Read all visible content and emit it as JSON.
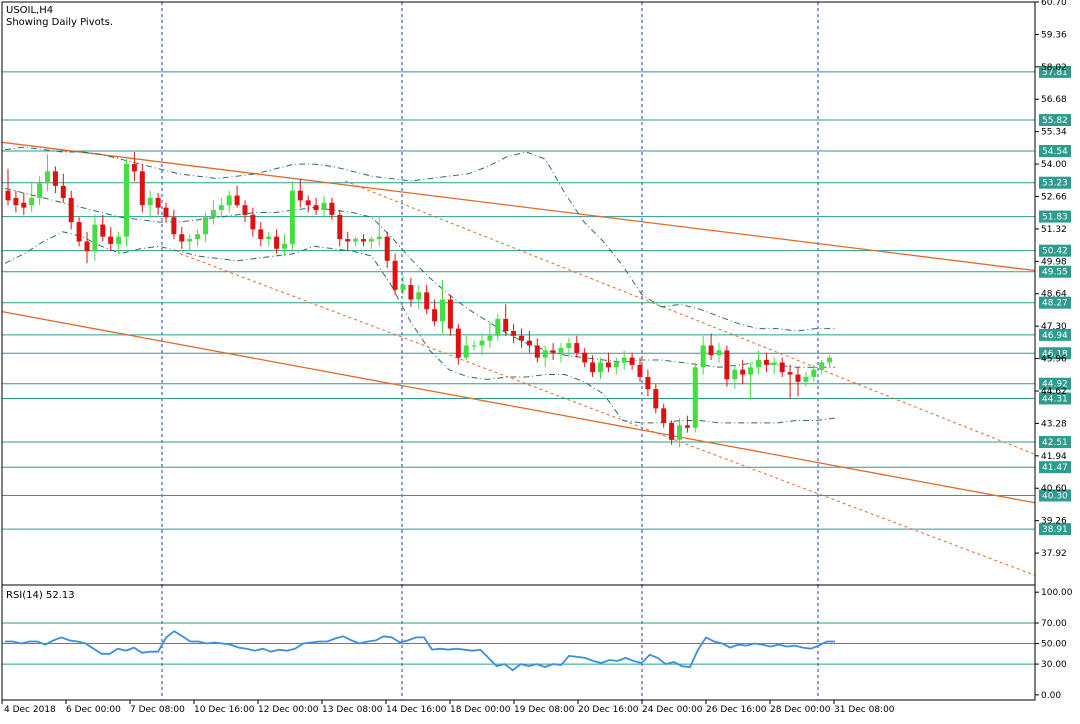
{
  "header": {
    "symbol_timeframe": "USOIL,H4",
    "subtitle": "Showing Daily Pivots."
  },
  "rsi_label": "RSI(14) 52.13",
  "colors": {
    "bull": "#44dd44",
    "bear": "#dd1111",
    "pivot_line": "#2a9d8f",
    "channel_line": "#e06a2c",
    "bollinger": "#2c6e63",
    "grid_vertical": "#1a3ccf",
    "rsi_line": "#3b8fe0",
    "rsi_levels": "#2a9d8f",
    "label_box": "#2e9c8c",
    "frame": "#000000"
  },
  "chart_data": [
    {
      "type": "candlestick",
      "title": "USOIL,H4",
      "subtitle": "Showing Daily Pivots.",
      "ylim": [
        36.6,
        60.7
      ],
      "y_ticks": [
        60.7,
        59.36,
        58.02,
        56.68,
        55.34,
        54.0,
        52.66,
        51.32,
        49.98,
        48.64,
        47.3,
        45.96,
        44.62,
        43.28,
        41.94,
        40.6,
        39.26,
        37.92
      ],
      "x_ticks": [
        "4 Dec 2018",
        "6 Dec 00:00",
        "7 Dec 08:00",
        "10 Dec 16:00",
        "12 Dec 00:00",
        "13 Dec 08:00",
        "14 Dec 16:00",
        "18 Dec 00:00",
        "19 Dec 08:00",
        "20 Dec 16:00",
        "24 Dec 00:00",
        "26 Dec 16:00",
        "28 Dec 00:00",
        "31 Dec 08:00"
      ],
      "day_separators_at_tick": [
        "7 Dec 08:00",
        "14 Dec 16:00",
        "24 Dec 00:00",
        "28 Dec 00:00"
      ],
      "pivot_levels": [
        57.81,
        55.82,
        54.54,
        53.23,
        51.83,
        50.42,
        49.55,
        48.27,
        46.94,
        46.18,
        44.92,
        44.31,
        42.51,
        41.47,
        40.3,
        38.91
      ],
      "candles": [
        {
          "o": 52.9,
          "h": 53.8,
          "l": 52.3,
          "c": 52.5
        },
        {
          "o": 52.6,
          "h": 52.9,
          "l": 52.0,
          "c": 52.3
        },
        {
          "o": 52.4,
          "h": 52.8,
          "l": 51.9,
          "c": 52.2
        },
        {
          "o": 52.3,
          "h": 53.2,
          "l": 52.0,
          "c": 52.6
        },
        {
          "o": 52.6,
          "h": 53.5,
          "l": 52.3,
          "c": 53.2
        },
        {
          "o": 53.2,
          "h": 54.4,
          "l": 52.9,
          "c": 53.7
        },
        {
          "o": 53.7,
          "h": 53.9,
          "l": 52.8,
          "c": 53.1
        },
        {
          "o": 53.1,
          "h": 53.6,
          "l": 52.4,
          "c": 52.6
        },
        {
          "o": 52.6,
          "h": 52.9,
          "l": 51.3,
          "c": 51.6
        },
        {
          "o": 51.6,
          "h": 51.8,
          "l": 50.6,
          "c": 50.8
        },
        {
          "o": 50.8,
          "h": 51.2,
          "l": 49.9,
          "c": 50.4
        },
        {
          "o": 50.4,
          "h": 51.9,
          "l": 50.0,
          "c": 51.5
        },
        {
          "o": 51.5,
          "h": 51.9,
          "l": 50.8,
          "c": 51.0
        },
        {
          "o": 51.0,
          "h": 51.4,
          "l": 50.4,
          "c": 50.7
        },
        {
          "o": 50.7,
          "h": 51.2,
          "l": 50.3,
          "c": 51.0
        },
        {
          "o": 51.0,
          "h": 54.2,
          "l": 50.6,
          "c": 54.0
        },
        {
          "o": 54.0,
          "h": 54.5,
          "l": 53.3,
          "c": 53.7
        },
        {
          "o": 53.7,
          "h": 54.0,
          "l": 52.0,
          "c": 52.3
        },
        {
          "o": 52.3,
          "h": 52.9,
          "l": 51.8,
          "c": 52.6
        },
        {
          "o": 52.6,
          "h": 52.8,
          "l": 51.9,
          "c": 52.2
        },
        {
          "o": 52.2,
          "h": 52.4,
          "l": 51.6,
          "c": 51.8
        },
        {
          "o": 51.8,
          "h": 52.1,
          "l": 50.9,
          "c": 51.1
        },
        {
          "o": 51.1,
          "h": 51.4,
          "l": 50.5,
          "c": 50.8
        },
        {
          "o": 50.8,
          "h": 51.1,
          "l": 50.4,
          "c": 50.9
        },
        {
          "o": 50.9,
          "h": 51.3,
          "l": 50.6,
          "c": 51.1
        },
        {
          "o": 51.1,
          "h": 52.0,
          "l": 50.8,
          "c": 51.8
        },
        {
          "o": 51.8,
          "h": 52.5,
          "l": 51.5,
          "c": 52.1
        },
        {
          "o": 52.1,
          "h": 52.6,
          "l": 51.8,
          "c": 52.3
        },
        {
          "o": 52.3,
          "h": 52.9,
          "l": 52.0,
          "c": 52.7
        },
        {
          "o": 52.7,
          "h": 53.1,
          "l": 52.2,
          "c": 52.3
        },
        {
          "o": 52.3,
          "h": 52.5,
          "l": 51.6,
          "c": 51.9
        },
        {
          "o": 51.9,
          "h": 52.2,
          "l": 51.0,
          "c": 51.3
        },
        {
          "o": 51.3,
          "h": 51.6,
          "l": 50.6,
          "c": 50.9
        },
        {
          "o": 50.9,
          "h": 51.2,
          "l": 50.6,
          "c": 51.0
        },
        {
          "o": 51.0,
          "h": 51.3,
          "l": 50.3,
          "c": 50.5
        },
        {
          "o": 50.5,
          "h": 51.1,
          "l": 50.2,
          "c": 50.7
        },
        {
          "o": 50.7,
          "h": 53.3,
          "l": 50.4,
          "c": 52.9
        },
        {
          "o": 52.9,
          "h": 53.4,
          "l": 52.2,
          "c": 52.5
        },
        {
          "o": 52.5,
          "h": 52.7,
          "l": 52.0,
          "c": 52.3
        },
        {
          "o": 52.3,
          "h": 52.6,
          "l": 51.9,
          "c": 52.1
        },
        {
          "o": 52.1,
          "h": 52.7,
          "l": 51.8,
          "c": 52.4
        },
        {
          "o": 52.4,
          "h": 52.6,
          "l": 51.7,
          "c": 51.9
        },
        {
          "o": 51.9,
          "h": 52.1,
          "l": 50.6,
          "c": 50.9
        },
        {
          "o": 50.9,
          "h": 51.2,
          "l": 50.4,
          "c": 50.8
        },
        {
          "o": 50.8,
          "h": 51.0,
          "l": 50.6,
          "c": 50.9
        },
        {
          "o": 50.9,
          "h": 51.1,
          "l": 50.6,
          "c": 50.8
        },
        {
          "o": 50.8,
          "h": 51.0,
          "l": 50.5,
          "c": 50.9
        },
        {
          "o": 50.9,
          "h": 51.8,
          "l": 50.6,
          "c": 51.0
        },
        {
          "o": 51.0,
          "h": 51.2,
          "l": 49.7,
          "c": 50.0
        },
        {
          "o": 50.0,
          "h": 50.3,
          "l": 48.6,
          "c": 48.8
        },
        {
          "o": 48.8,
          "h": 49.4,
          "l": 48.6,
          "c": 49.0
        },
        {
          "o": 49.0,
          "h": 49.3,
          "l": 48.1,
          "c": 48.4
        },
        {
          "o": 48.4,
          "h": 49.0,
          "l": 48.0,
          "c": 48.7
        },
        {
          "o": 48.7,
          "h": 49.0,
          "l": 47.8,
          "c": 48.0
        },
        {
          "o": 48.0,
          "h": 48.4,
          "l": 47.3,
          "c": 47.5
        },
        {
          "o": 47.5,
          "h": 49.2,
          "l": 47.0,
          "c": 48.4
        },
        {
          "o": 48.4,
          "h": 48.6,
          "l": 46.9,
          "c": 47.2
        },
        {
          "o": 47.2,
          "h": 47.4,
          "l": 45.7,
          "c": 46.0
        },
        {
          "o": 46.0,
          "h": 46.9,
          "l": 45.9,
          "c": 46.5
        },
        {
          "o": 46.5,
          "h": 46.7,
          "l": 46.3,
          "c": 46.5
        },
        {
          "o": 46.5,
          "h": 47.0,
          "l": 46.1,
          "c": 46.7
        },
        {
          "o": 46.7,
          "h": 47.5,
          "l": 46.4,
          "c": 46.9
        },
        {
          "o": 46.9,
          "h": 47.8,
          "l": 46.7,
          "c": 47.6
        },
        {
          "o": 47.6,
          "h": 48.2,
          "l": 46.9,
          "c": 47.1
        },
        {
          "o": 47.1,
          "h": 47.4,
          "l": 46.6,
          "c": 46.9
        },
        {
          "o": 46.9,
          "h": 47.2,
          "l": 46.4,
          "c": 46.7
        },
        {
          "o": 46.7,
          "h": 47.1,
          "l": 46.2,
          "c": 46.5
        },
        {
          "o": 46.5,
          "h": 46.8,
          "l": 45.8,
          "c": 46.0
        },
        {
          "o": 46.0,
          "h": 46.5,
          "l": 45.6,
          "c": 46.3
        },
        {
          "o": 46.3,
          "h": 46.6,
          "l": 45.9,
          "c": 46.2
        },
        {
          "o": 46.2,
          "h": 46.6,
          "l": 45.8,
          "c": 46.4
        },
        {
          "o": 46.4,
          "h": 46.8,
          "l": 46.0,
          "c": 46.6
        },
        {
          "o": 46.6,
          "h": 46.9,
          "l": 46.0,
          "c": 46.2
        },
        {
          "o": 46.2,
          "h": 46.4,
          "l": 45.6,
          "c": 45.8
        },
        {
          "o": 45.8,
          "h": 46.1,
          "l": 45.2,
          "c": 45.4
        },
        {
          "o": 45.4,
          "h": 46.0,
          "l": 45.1,
          "c": 45.8
        },
        {
          "o": 45.8,
          "h": 46.2,
          "l": 45.4,
          "c": 45.6
        },
        {
          "o": 45.6,
          "h": 46.0,
          "l": 45.3,
          "c": 45.8
        },
        {
          "o": 45.8,
          "h": 46.3,
          "l": 45.5,
          "c": 46.0
        },
        {
          "o": 46.0,
          "h": 46.2,
          "l": 45.5,
          "c": 45.7
        },
        {
          "o": 45.7,
          "h": 46.0,
          "l": 45.0,
          "c": 45.2
        },
        {
          "o": 45.2,
          "h": 45.5,
          "l": 44.4,
          "c": 44.7
        },
        {
          "o": 44.7,
          "h": 44.9,
          "l": 43.7,
          "c": 43.9
        },
        {
          "o": 43.9,
          "h": 44.1,
          "l": 43.1,
          "c": 43.3
        },
        {
          "o": 43.3,
          "h": 43.4,
          "l": 42.4,
          "c": 42.6
        },
        {
          "o": 42.6,
          "h": 43.5,
          "l": 42.3,
          "c": 43.2
        },
        {
          "o": 43.2,
          "h": 43.6,
          "l": 42.9,
          "c": 43.1
        },
        {
          "o": 43.1,
          "h": 45.8,
          "l": 42.9,
          "c": 45.6
        },
        {
          "o": 45.6,
          "h": 46.9,
          "l": 45.3,
          "c": 46.5
        },
        {
          "o": 46.5,
          "h": 47.0,
          "l": 45.9,
          "c": 46.1
        },
        {
          "o": 46.1,
          "h": 46.6,
          "l": 45.8,
          "c": 46.3
        },
        {
          "o": 46.3,
          "h": 46.5,
          "l": 44.8,
          "c": 45.1
        },
        {
          "o": 45.1,
          "h": 45.7,
          "l": 44.7,
          "c": 45.5
        },
        {
          "o": 45.5,
          "h": 45.9,
          "l": 44.9,
          "c": 45.3
        },
        {
          "o": 45.3,
          "h": 45.8,
          "l": 44.3,
          "c": 45.6
        },
        {
          "o": 45.6,
          "h": 46.3,
          "l": 45.3,
          "c": 45.9
        },
        {
          "o": 45.9,
          "h": 46.2,
          "l": 45.4,
          "c": 45.7
        },
        {
          "o": 45.7,
          "h": 46.0,
          "l": 45.3,
          "c": 45.8
        },
        {
          "o": 45.8,
          "h": 46.0,
          "l": 45.2,
          "c": 45.4
        },
        {
          "o": 45.4,
          "h": 45.7,
          "l": 44.3,
          "c": 45.3
        },
        {
          "o": 45.3,
          "h": 45.6,
          "l": 44.4,
          "c": 45.0
        },
        {
          "o": 45.0,
          "h": 45.4,
          "l": 44.8,
          "c": 45.2
        },
        {
          "o": 45.2,
          "h": 45.7,
          "l": 45.0,
          "c": 45.5
        },
        {
          "o": 45.5,
          "h": 45.9,
          "l": 45.3,
          "c": 45.8
        },
        {
          "o": 45.8,
          "h": 46.1,
          "l": 45.6,
          "c": 46.0
        }
      ],
      "bollinger_upper": [
        54.6,
        54.7,
        54.6,
        54.5,
        54.5,
        54.4,
        54.2,
        54.0,
        53.8,
        53.6,
        53.5,
        53.4,
        53.5,
        53.6,
        53.8,
        54.0,
        54.0,
        53.9,
        53.7,
        53.5,
        53.4,
        53.3,
        53.4,
        53.5,
        53.6,
        53.9,
        54.3,
        54.5,
        54.2,
        52.8,
        51.6,
        50.8,
        49.8,
        48.6,
        48.1,
        48.2,
        48.0,
        47.7,
        47.4,
        47.2,
        47.2,
        47.1,
        47.2,
        47.2
      ],
      "bollinger_middle": [
        53.0,
        52.8,
        52.6,
        52.4,
        52.2,
        52.0,
        51.8,
        51.7,
        51.6,
        51.6,
        51.7,
        51.8,
        51.9,
        52.0,
        52.0,
        52.1,
        52.2,
        52.1,
        52.0,
        51.8,
        51.0,
        50.1,
        49.3,
        48.6,
        48.0,
        47.5,
        47.0,
        46.6,
        46.3,
        46.1,
        46.0,
        45.9,
        45.8,
        45.9,
        45.9,
        45.8,
        45.7,
        45.6,
        45.7,
        45.8,
        45.7,
        45.6,
        45.6,
        45.6
      ],
      "bollinger_lower": [
        49.9,
        50.3,
        50.8,
        51.2,
        51.0,
        50.6,
        50.3,
        50.5,
        50.6,
        50.4,
        50.2,
        50.1,
        50.0,
        50.1,
        50.2,
        50.3,
        50.6,
        50.5,
        50.4,
        50.2,
        49.0,
        47.5,
        46.3,
        45.5,
        45.2,
        45.1,
        45.2,
        45.2,
        45.3,
        45.3,
        45.0,
        44.5,
        43.4,
        43.3,
        43.3,
        43.4,
        43.4,
        43.3,
        43.3,
        43.3,
        43.3,
        43.4,
        43.4,
        43.5
      ]
    },
    {
      "type": "line",
      "title": "RSI(14) 52.13",
      "ylim": [
        -5,
        107
      ],
      "y_ticks": [
        100.0,
        70.0,
        50.0,
        30.0,
        0.0
      ],
      "levels": [
        70,
        50,
        30
      ],
      "series": [
        {
          "name": "RSI(14)",
          "values": [
            52,
            52,
            50,
            52,
            52,
            49,
            53,
            56,
            53,
            52,
            50,
            45,
            40,
            40,
            45,
            43,
            46,
            41,
            42,
            42,
            56,
            62,
            57,
            52,
            52,
            50,
            51,
            50,
            49,
            46,
            45,
            43,
            45,
            42,
            44,
            43,
            45,
            50,
            51,
            52,
            52,
            55,
            57,
            53,
            50,
            52,
            53,
            57,
            56,
            51,
            53,
            56,
            56,
            44,
            45,
            44,
            45,
            44,
            43,
            44,
            36,
            28,
            30,
            24,
            30,
            28,
            30,
            27,
            30,
            29,
            38,
            37,
            36,
            33,
            31,
            34,
            33,
            36,
            33,
            31,
            39,
            36,
            30,
            32,
            28,
            27,
            44,
            56,
            52,
            50,
            46,
            49,
            48,
            50,
            49,
            47,
            49,
            47,
            48,
            46,
            45,
            48,
            52,
            52
          ]
        }
      ]
    }
  ]
}
